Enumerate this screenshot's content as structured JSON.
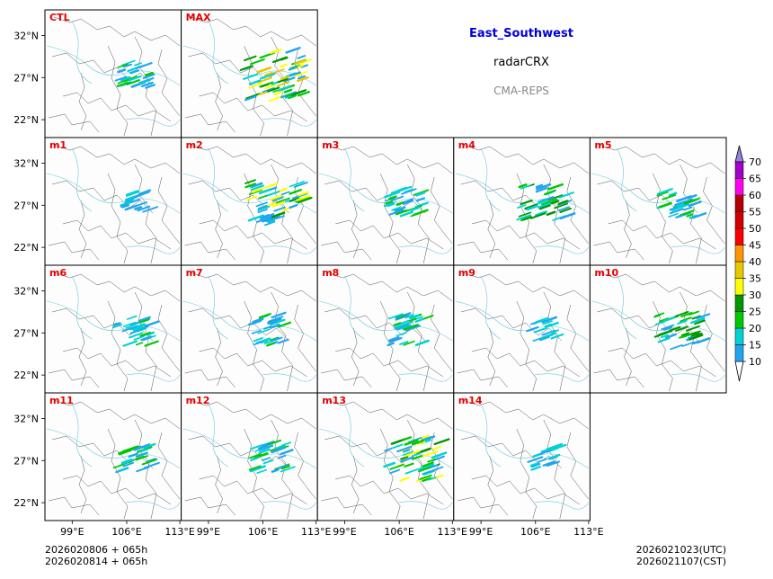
{
  "header": {
    "region": "East_Southwest",
    "variable": "radarCRX",
    "model": "CMA-REPS"
  },
  "footer": {
    "init_line1": "2026020806  +  065h",
    "init_line2": "2026020814  +  065h",
    "valid_utc": "2026021023(UTC)",
    "valid_cst": "2026021107(CST)"
  },
  "axes": {
    "lat_ticks": [
      "32°N",
      "27°N",
      "22°N"
    ],
    "lon_ticks": [
      "99°E",
      "106°E",
      "113°E"
    ]
  },
  "panels": [
    {
      "label": "CTL",
      "intensity": 2
    },
    {
      "label": "MAX",
      "intensity": 5
    },
    {
      "label": "m1",
      "intensity": 1
    },
    {
      "label": "m2",
      "intensity": 4
    },
    {
      "label": "m3",
      "intensity": 2
    },
    {
      "label": "m4",
      "intensity": 3
    },
    {
      "label": "m5",
      "intensity": 2
    },
    {
      "label": "m6",
      "intensity": 2
    },
    {
      "label": "m7",
      "intensity": 2
    },
    {
      "label": "m8",
      "intensity": 2
    },
    {
      "label": "m9",
      "intensity": 1
    },
    {
      "label": "m10",
      "intensity": 3
    },
    {
      "label": "m11",
      "intensity": 2
    },
    {
      "label": "m12",
      "intensity": 2
    },
    {
      "label": "m13",
      "intensity": 4
    },
    {
      "label": "m14",
      "intensity": 1
    }
  ],
  "colorbar": {
    "levels": [
      "10",
      "15",
      "20",
      "25",
      "30",
      "35",
      "40",
      "45",
      "50",
      "55",
      "60",
      "65",
      "70"
    ],
    "colors": [
      "#1fa5f0",
      "#00d2d2",
      "#00c800",
      "#009600",
      "#ffff00",
      "#e6c800",
      "#ff9600",
      "#ff0000",
      "#d20000",
      "#b40000",
      "#ff00f0",
      "#a000c8",
      "#9682dc"
    ]
  }
}
